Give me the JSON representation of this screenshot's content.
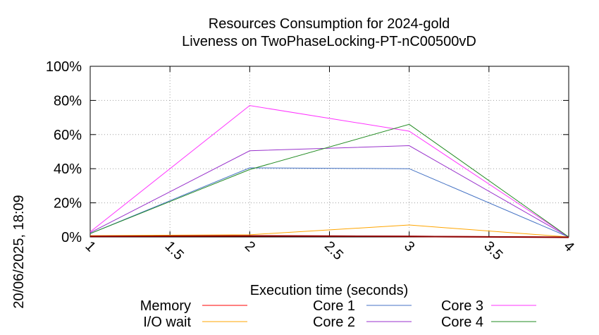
{
  "chart_data": {
    "type": "line",
    "title": "Resources Consumption for 2024-gold",
    "subtitle": "Liveness on TwoPhaseLocking-PT-nC00500vD",
    "xlabel": "Execution time (seconds)",
    "ylabel": "",
    "timestamp": "20/06/2025, 18:09",
    "xlim": [
      1,
      4
    ],
    "ylim": [
      0,
      100
    ],
    "x_ticks": [
      "1",
      "1.5",
      "2",
      "2.5",
      "3",
      "3.5",
      "4"
    ],
    "x_tick_values": [
      1,
      1.5,
      2,
      2.5,
      3,
      3.5,
      4
    ],
    "y_ticks": [
      "0%",
      "20%",
      "40%",
      "60%",
      "80%",
      "100%"
    ],
    "y_tick_values": [
      0,
      20,
      40,
      60,
      80,
      100
    ],
    "grid": true,
    "legend_position": "bottom",
    "x": [
      1,
      2,
      3,
      4
    ],
    "series": [
      {
        "name": "Memory",
        "color": "#ff0000",
        "values": [
          0.5,
          0.8,
          0.5,
          0
        ]
      },
      {
        "name": "I/O wait",
        "color": "#ffa500",
        "values": [
          0.8,
          1.3,
          7,
          0
        ]
      },
      {
        "name": "Core 1",
        "color": "#4472c4",
        "values": [
          2,
          40.5,
          40,
          0
        ]
      },
      {
        "name": "Core 2",
        "color": "#9932cc",
        "values": [
          2.5,
          50.5,
          53.5,
          0
        ]
      },
      {
        "name": "Core 3",
        "color": "#ff33ff",
        "values": [
          3,
          77,
          62,
          0
        ]
      },
      {
        "name": "Core 4",
        "color": "#228b22",
        "values": [
          2,
          39.5,
          66,
          0
        ]
      }
    ]
  }
}
